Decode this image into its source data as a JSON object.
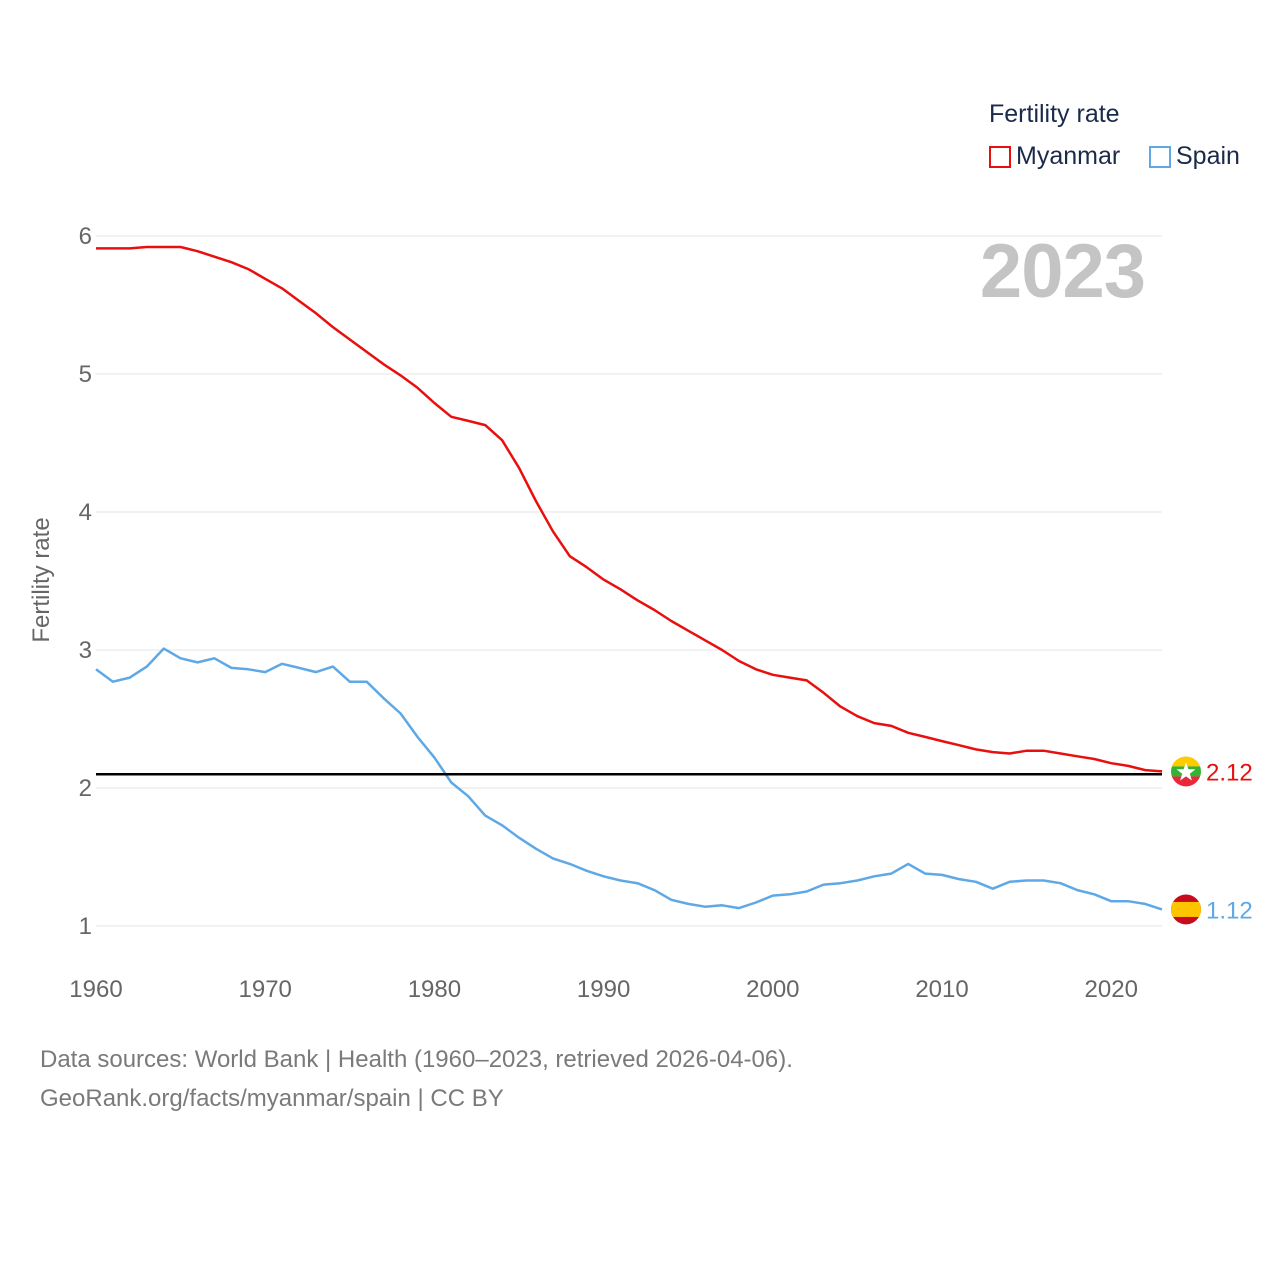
{
  "chart_data": {
    "type": "line",
    "legend_title": "Fertility rate",
    "ylabel": "Fertility rate",
    "year_label": "2023",
    "xlim": [
      1960,
      2023
    ],
    "ylim": [
      0.6,
      6.3
    ],
    "x_ticks": [
      "1960",
      "1970",
      "1980",
      "1990",
      "2000",
      "2010",
      "2020"
    ],
    "y_ticks": [
      "1",
      "2",
      "3",
      "4",
      "5",
      "6"
    ],
    "reference_line": 2.1,
    "years": [
      1960,
      1961,
      1962,
      1963,
      1964,
      1965,
      1966,
      1967,
      1968,
      1969,
      1970,
      1971,
      1972,
      1973,
      1974,
      1975,
      1976,
      1977,
      1978,
      1979,
      1980,
      1981,
      1982,
      1983,
      1984,
      1985,
      1986,
      1987,
      1988,
      1989,
      1990,
      1991,
      1992,
      1993,
      1994,
      1995,
      1996,
      1997,
      1998,
      1999,
      2000,
      2001,
      2002,
      2003,
      2004,
      2005,
      2006,
      2007,
      2008,
      2009,
      2010,
      2011,
      2012,
      2013,
      2014,
      2015,
      2016,
      2017,
      2018,
      2019,
      2020,
      2021,
      2022,
      2023
    ],
    "series": [
      {
        "name": "Myanmar",
        "color": "#e8100f",
        "flag": "myanmar-flag-icon",
        "end_label": "2.12",
        "values": [
          5.91,
          5.91,
          5.91,
          5.92,
          5.92,
          5.92,
          5.89,
          5.85,
          5.81,
          5.76,
          5.69,
          5.62,
          5.53,
          5.44,
          5.34,
          5.25,
          5.16,
          5.07,
          4.99,
          4.9,
          4.79,
          4.69,
          4.66,
          4.63,
          4.52,
          4.32,
          4.08,
          3.86,
          3.68,
          3.6,
          3.51,
          3.44,
          3.36,
          3.29,
          3.21,
          3.14,
          3.07,
          3.0,
          2.92,
          2.86,
          2.82,
          2.8,
          2.78,
          2.69,
          2.59,
          2.52,
          2.47,
          2.45,
          2.4,
          2.37,
          2.34,
          2.31,
          2.28,
          2.26,
          2.25,
          2.27,
          2.27,
          2.25,
          2.23,
          2.21,
          2.18,
          2.16,
          2.13,
          2.12
        ]
      },
      {
        "name": "Spain",
        "color": "#5ea8e6",
        "flag": "spain-flag-icon",
        "end_label": "1.12",
        "values": [
          2.86,
          2.77,
          2.8,
          2.88,
          3.01,
          2.94,
          2.91,
          2.94,
          2.87,
          2.86,
          2.84,
          2.9,
          2.87,
          2.84,
          2.88,
          2.77,
          2.77,
          2.65,
          2.54,
          2.37,
          2.22,
          2.04,
          1.94,
          1.8,
          1.73,
          1.64,
          1.56,
          1.49,
          1.45,
          1.4,
          1.36,
          1.33,
          1.31,
          1.26,
          1.19,
          1.16,
          1.14,
          1.15,
          1.13,
          1.17,
          1.22,
          1.23,
          1.25,
          1.3,
          1.31,
          1.33,
          1.36,
          1.38,
          1.45,
          1.38,
          1.37,
          1.34,
          1.32,
          1.27,
          1.32,
          1.33,
          1.33,
          1.31,
          1.26,
          1.23,
          1.18,
          1.18,
          1.16,
          1.12
        ]
      }
    ]
  },
  "footer": {
    "source_line": "Data sources: World Bank | Health (1960–2023, retrieved 2026-04-06).",
    "url_line": "GeoRank.org/facts/myanmar/spain | CC BY"
  }
}
